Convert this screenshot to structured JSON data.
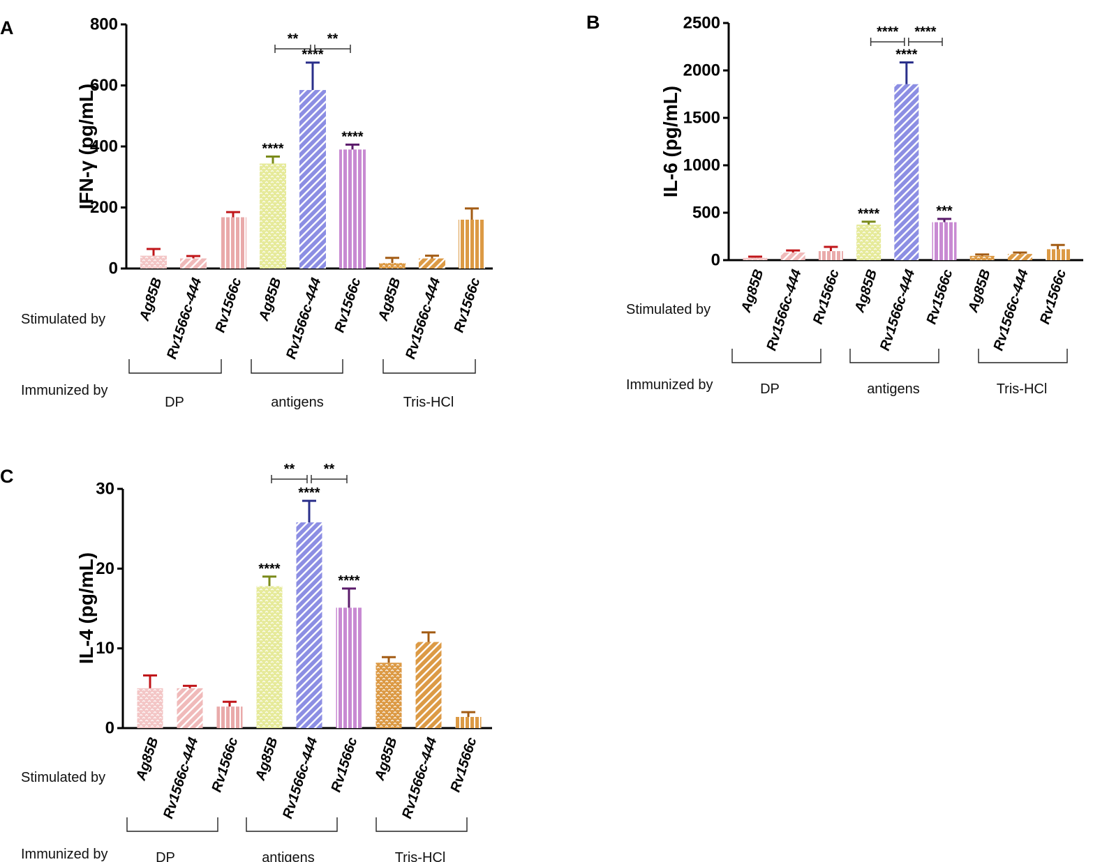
{
  "figure": {
    "colors": {
      "axis": "#000000"
    }
  },
  "chart_data": [
    {
      "panel": "A",
      "type": "bar",
      "ylabel": "IFN-γ (pg/mL)",
      "ylim": [
        0,
        800
      ],
      "yticks": [
        "0",
        "200",
        "400",
        "600",
        "800"
      ],
      "categories": [
        "Ag85B",
        "Rv1566c-444",
        "Rv1566c",
        "Ag85B",
        "Rv1566c-444",
        "Rv1566c",
        "Ag85B",
        "Rv1566c-444",
        "Rv1566c"
      ],
      "values": [
        42,
        33,
        168,
        344,
        585,
        390,
        18,
        33,
        160
      ],
      "errors": [
        22,
        8,
        17,
        23,
        90,
        16,
        17,
        9,
        37
      ],
      "significance": [
        "",
        "",
        "",
        "****",
        "****",
        "****",
        "",
        "",
        ""
      ],
      "comparisons": [
        {
          "from": 3,
          "to": 4,
          "label": "**"
        },
        {
          "from": 4,
          "to": 5,
          "label": "**"
        }
      ],
      "stimulated_label": "Stimulated by",
      "immunized_label": "Immunized by",
      "groups": [
        "DP",
        "antigens",
        "Tris-HCl"
      ]
    },
    {
      "panel": "B",
      "type": "bar",
      "ylabel": "IL-6 (pg/mL)",
      "ylim": [
        0,
        2500
      ],
      "yticks": [
        "0",
        "500",
        "1000",
        "1500",
        "2000",
        "2500"
      ],
      "categories": [
        "Ag85B",
        "Rv1566c-444",
        "Rv1566c",
        "Ag85B",
        "Rv1566c-444",
        "Rv1566c",
        "Ag85B",
        "Rv1566c-444",
        "Rv1566c"
      ],
      "values": [
        25,
        80,
        95,
        375,
        1855,
        400,
        45,
        65,
        115
      ],
      "errors": [
        12,
        22,
        45,
        30,
        230,
        35,
        15,
        15,
        45
      ],
      "significance": [
        "",
        "",
        "",
        "****",
        "****",
        "***",
        "",
        "",
        ""
      ],
      "comparisons": [
        {
          "from": 3,
          "to": 4,
          "label": "****"
        },
        {
          "from": 4,
          "to": 5,
          "label": "****"
        }
      ],
      "stimulated_label": "Stimulated by",
      "immunized_label": "Immunized by",
      "groups": [
        "DP",
        "antigens",
        "Tris-HCl"
      ]
    },
    {
      "panel": "C",
      "type": "bar",
      "ylabel": "IL-4 (pg/mL)",
      "ylim": [
        0,
        30
      ],
      "yticks": [
        "0",
        "10",
        "20",
        "30"
      ],
      "categories": [
        "Ag85B",
        "Rv1566c-444",
        "Rv1566c",
        "Ag85B",
        "Rv1566c-444",
        "Rv1566c",
        "Ag85B",
        "Rv1566c-444",
        "Rv1566c"
      ],
      "values": [
        5.0,
        5.0,
        2.7,
        17.8,
        25.8,
        15.1,
        8.2,
        10.8,
        1.4
      ],
      "errors": [
        1.6,
        0.3,
        0.6,
        1.2,
        2.7,
        2.4,
        0.7,
        1.2,
        0.6
      ],
      "significance": [
        "",
        "",
        "",
        "****",
        "****",
        "****",
        "",
        "",
        ""
      ],
      "comparisons": [
        {
          "from": 3,
          "to": 4,
          "label": "**"
        },
        {
          "from": 4,
          "to": 5,
          "label": "**"
        }
      ],
      "stimulated_label": "Stimulated by",
      "immunized_label": "Immunized by",
      "groups": [
        "DP",
        "antigens",
        "Tris-HCl"
      ]
    }
  ],
  "bar_styles": [
    {
      "pattern": "dots",
      "fill": "#f3c6c6",
      "mark": "#ffffff",
      "error_color": "#c0161a"
    },
    {
      "pattern": "diag",
      "fill": "#f0baba",
      "mark": "#ffffff",
      "error_color": "#c0161a"
    },
    {
      "pattern": "vert",
      "fill": "#e9aaaa",
      "mark": "#ffffff",
      "error_color": "#c0161a"
    },
    {
      "pattern": "dots",
      "fill": "#e6ea9a",
      "mark": "#ffffff",
      "error_color": "#7a8a1a"
    },
    {
      "pattern": "diag",
      "fill": "#8c8ee3",
      "mark": "#ffffff",
      "error_color": "#2a2f8a"
    },
    {
      "pattern": "vert",
      "fill": "#c88ad2",
      "mark": "#ffffff",
      "error_color": "#5a1a6a"
    },
    {
      "pattern": "dots",
      "fill": "#dc9a45",
      "mark": "#ffffff",
      "error_color": "#a35c14"
    },
    {
      "pattern": "diag",
      "fill": "#dc9a45",
      "mark": "#ffffff",
      "error_color": "#a35c14"
    },
    {
      "pattern": "vert",
      "fill": "#dc9a45",
      "mark": "#ffffff",
      "error_color": "#a35c14"
    }
  ]
}
